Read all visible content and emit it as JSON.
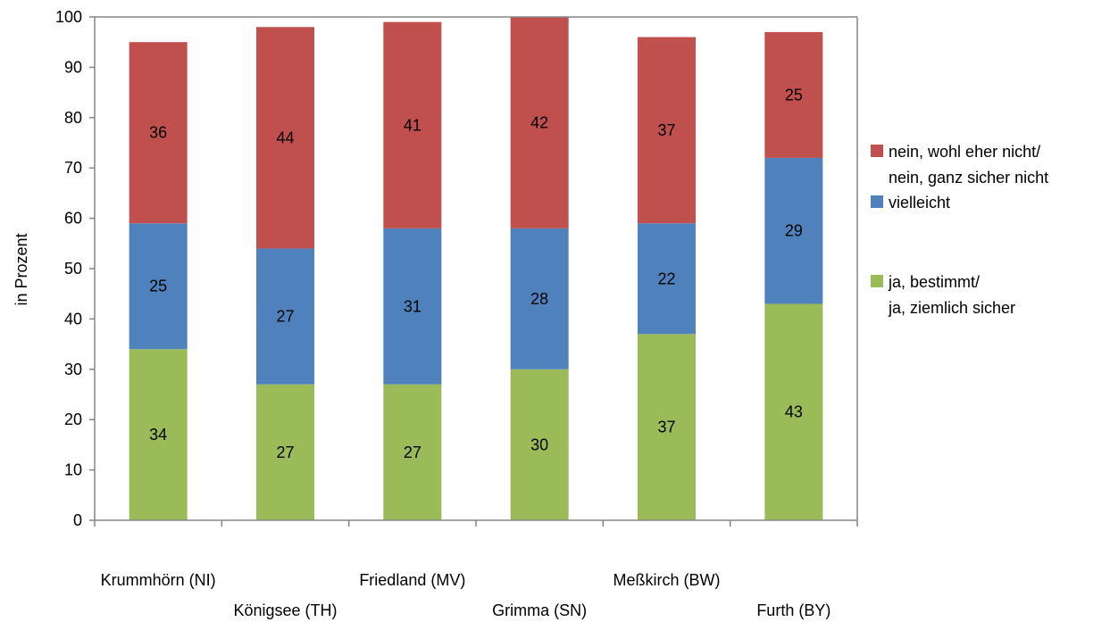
{
  "chart_data": {
    "type": "bar",
    "stacked": true,
    "categories": [
      "Krummhörn (NI)",
      "Königsee (TH)",
      "Friedland (MV)",
      "Grimma (SN)",
      "Meßkirch (BW)",
      "Furth (BY)"
    ],
    "series": [
      {
        "name": "ja, bestimmt/ ja, ziemlich sicher",
        "legend_lines": [
          "ja, bestimmt/",
          "ja, ziemlich sicher"
        ],
        "color": "#9bbb59",
        "values": [
          34,
          27,
          27,
          30,
          37,
          43
        ]
      },
      {
        "name": "vielleicht",
        "legend_lines": [
          "vielleicht"
        ],
        "color": "#4f81bd",
        "values": [
          25,
          27,
          31,
          28,
          22,
          29
        ]
      },
      {
        "name": "nein, wohl eher nicht/ nein, ganz sicher nicht",
        "legend_lines": [
          "nein, wohl eher nicht/",
          "nein, ganz sicher nicht"
        ],
        "color": "#c0504d",
        "values": [
          36,
          44,
          41,
          42,
          37,
          25
        ]
      }
    ],
    "ylabel": "in Prozent",
    "ylim": [
      0,
      100
    ],
    "yticks": [
      0,
      10,
      20,
      30,
      40,
      50,
      60,
      70,
      80,
      90,
      100
    ],
    "grid": false,
    "legend_position": "right"
  }
}
